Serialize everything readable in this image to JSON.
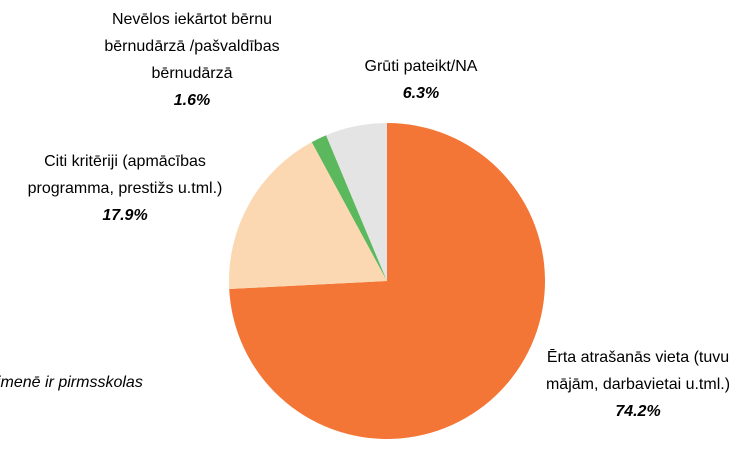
{
  "chart_data": {
    "type": "pie",
    "categories": [
      "Ērta atrašanās vieta (tuvu mājām, darbavietai u.tml.)",
      "Citi kritēriji (apmācības programma, prestižs u.tml.)",
      "Nevēlos iekārtot bērnu bērnudārzā /pašvaldības bērnudārzā",
      "Grūti pateikt/NA"
    ],
    "values": [
      74.2,
      17.9,
      1.6,
      6.3
    ],
    "value_labels": [
      "74.2%",
      "17.9%",
      "1.6%",
      "6.3%"
    ],
    "colors": [
      "#f47636",
      "#fcd8b2",
      "#5cb85c",
      "#e4e4e4"
    ],
    "annotation": "imenē ir pirmsskolas"
  }
}
